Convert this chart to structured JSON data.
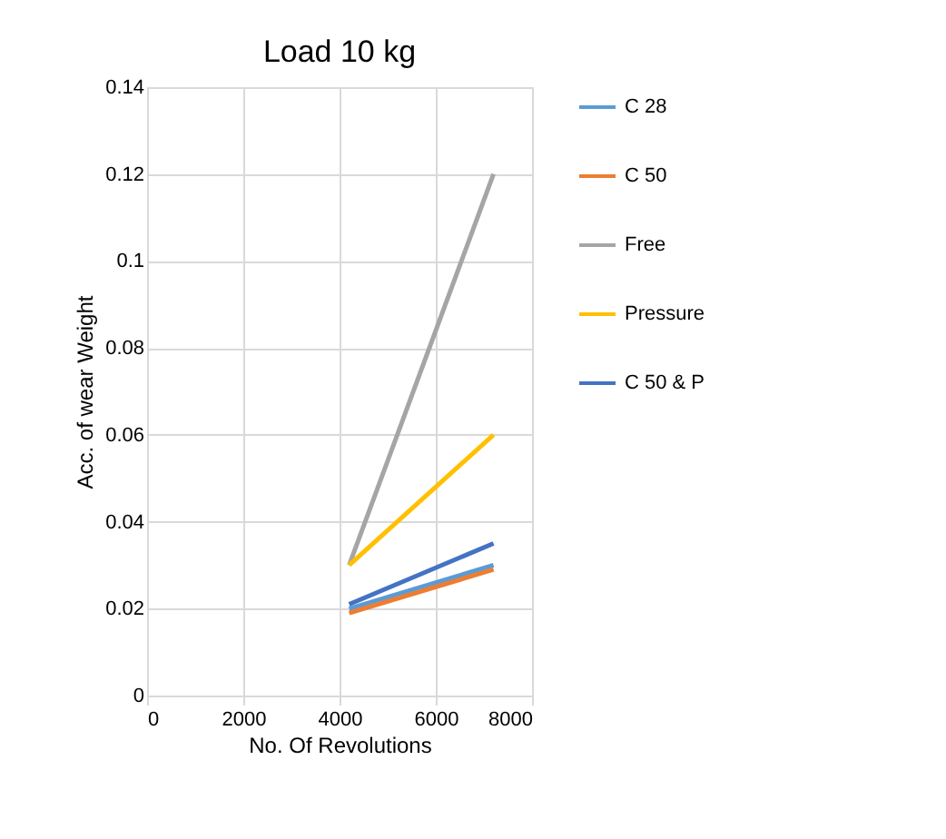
{
  "chart_data": {
    "type": "line",
    "title": "Load 10 kg",
    "xlabel": "No. Of Revolutions",
    "ylabel": "Acc. of  wear Weight",
    "x": [
      4200,
      7200
    ],
    "series": [
      {
        "name": "C 28",
        "color": "#5b9bd5",
        "values": [
          0.02,
          0.03
        ]
      },
      {
        "name": "C 50",
        "color": "#ed7d31",
        "values": [
          0.019,
          0.029
        ]
      },
      {
        "name": "Free",
        "color": "#a5a5a5",
        "values": [
          0.03,
          0.12
        ]
      },
      {
        "name": "Pressure",
        "color": "#ffc000",
        "values": [
          0.03,
          0.06
        ]
      },
      {
        "name": "C 50 & P",
        "color": "#4472c4",
        "values": [
          0.021,
          0.035
        ]
      }
    ],
    "xlim": [
      0,
      8000
    ],
    "xticks": [
      0,
      2000,
      4000,
      6000,
      8000
    ],
    "ylim": [
      0,
      0.14
    ],
    "yticks": [
      0,
      0.02,
      0.04,
      0.06,
      0.08,
      0.1,
      0.12,
      0.14
    ],
    "grid": true,
    "legend": "right",
    "marker": "none",
    "line_style": "solid"
  }
}
